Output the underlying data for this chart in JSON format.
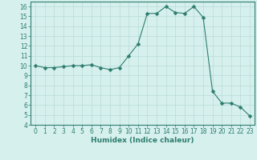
{
  "x": [
    0,
    1,
    2,
    3,
    4,
    5,
    6,
    7,
    8,
    9,
    10,
    11,
    12,
    13,
    14,
    15,
    16,
    17,
    18,
    19,
    20,
    21,
    22,
    23
  ],
  "y": [
    10.0,
    9.8,
    9.8,
    9.9,
    10.0,
    10.0,
    10.1,
    9.8,
    9.6,
    9.8,
    11.0,
    12.2,
    15.3,
    15.3,
    16.0,
    15.4,
    15.3,
    16.0,
    14.9,
    7.4,
    6.2,
    6.2,
    5.8,
    4.9
  ],
  "line_color": "#2e7d6e",
  "marker": "D",
  "marker_size": 2.5,
  "bg_color": "#d6f0ee",
  "grid_color": "#b8dbd8",
  "xlabel": "Humidex (Indice chaleur)",
  "xlim": [
    -0.5,
    23.5
  ],
  "ylim": [
    4,
    16.5
  ],
  "yticks": [
    4,
    5,
    6,
    7,
    8,
    9,
    10,
    11,
    12,
    13,
    14,
    15,
    16
  ],
  "xticks": [
    0,
    1,
    2,
    3,
    4,
    5,
    6,
    7,
    8,
    9,
    10,
    11,
    12,
    13,
    14,
    15,
    16,
    17,
    18,
    19,
    20,
    21,
    22,
    23
  ],
  "tick_fontsize": 5.5,
  "xlabel_fontsize": 6.5
}
